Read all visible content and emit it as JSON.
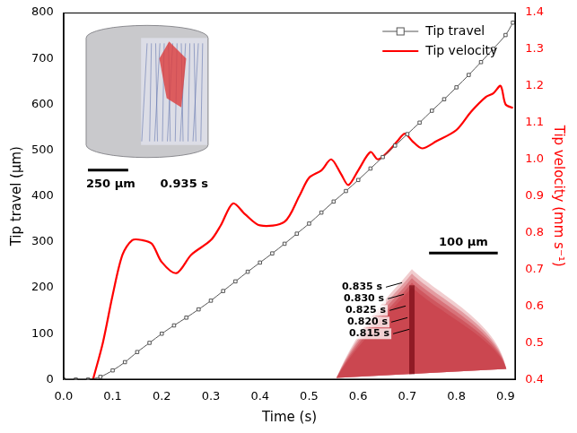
{
  "chart_data": {
    "type": "line",
    "x_label": "Time (s)",
    "y_label": "Tip travel (µm)",
    "y2_label": "Tip velocity (mm s⁻¹)",
    "xlim": [
      0,
      0.92
    ],
    "xticks": [
      {
        "value": 0,
        "label": "0.0"
      },
      0.1,
      0.2,
      0.3,
      0.4,
      0.5,
      0.6,
      0.7,
      0.8,
      0.9
    ],
    "ylim": [
      0,
      800
    ],
    "yticks": [
      0,
      100,
      200,
      300,
      400,
      500,
      600,
      700,
      800
    ],
    "y2lim": [
      0.4,
      1.4
    ],
    "y2ticks": [
      0.4,
      0.5,
      0.6,
      0.7,
      0.8,
      0.9,
      {
        "value": 1,
        "label": "1.0"
      },
      1.1,
      1.2,
      1.3,
      1.4
    ],
    "grid": false,
    "legend": "upper right",
    "series": [
      {
        "name": "Tip travel",
        "color": "#555555",
        "marker": "square",
        "line_style": "solid",
        "axis": "y",
        "x": [
          0,
          0.025,
          0.05,
          0.075,
          0.1,
          0.125,
          0.15,
          0.175,
          0.2,
          0.225,
          0.25,
          0.275,
          0.3,
          0.325,
          0.35,
          0.375,
          0.4,
          0.425,
          0.45,
          0.475,
          0.5,
          0.525,
          0.55,
          0.575,
          0.6,
          0.625,
          0.65,
          0.675,
          0.7,
          0.725,
          0.75,
          0.775,
          0.8,
          0.825,
          0.85,
          0.875,
          0.9,
          0.915
        ],
        "values": [
          0,
          0,
          0,
          6,
          20,
          38,
          60,
          80,
          100,
          118,
          135,
          153,
          172,
          193,
          214,
          235,
          255,
          275,
          296,
          318,
          340,
          364,
          388,
          411,
          435,
          460,
          485,
          510,
          535,
          560,
          586,
          611,
          637,
          664,
          692,
          721,
          751,
          778
        ]
      },
      {
        "name": "Tip velocity",
        "color": "#ff0000",
        "marker": "none",
        "line_style": "solid",
        "axis": "y2",
        "x": [
          0.06,
          0.08,
          0.1,
          0.12,
          0.14,
          0.16,
          0.18,
          0.2,
          0.23,
          0.26,
          0.3,
          0.32,
          0.345,
          0.37,
          0.4,
          0.45,
          0.48,
          0.5,
          0.525,
          0.545,
          0.565,
          0.58,
          0.6,
          0.625,
          0.64,
          0.66,
          0.68,
          0.695,
          0.71,
          0.73,
          0.76,
          0.8,
          0.83,
          0.86,
          0.875,
          0.89,
          0.9,
          0.915
        ],
        "values": [
          0.4,
          0.5,
          0.63,
          0.74,
          0.78,
          0.78,
          0.77,
          0.72,
          0.69,
          0.74,
          0.78,
          0.82,
          0.88,
          0.85,
          0.82,
          0.83,
          0.9,
          0.95,
          0.97,
          1.0,
          0.96,
          0.93,
          0.97,
          1.02,
          1.0,
          1.02,
          1.05,
          1.07,
          1.05,
          1.03,
          1.05,
          1.08,
          1.13,
          1.17,
          1.18,
          1.2,
          1.15,
          1.14
        ]
      }
    ],
    "annotations": {
      "left_inset": {
        "scale_bar": "250 µm",
        "time": "0.935 s"
      },
      "right_inset": {
        "scale_bar": "100 µm",
        "times": [
          "0.835 s",
          "0.830 s",
          "0.825 s",
          "0.820 s",
          "0.815 s"
        ]
      }
    }
  }
}
